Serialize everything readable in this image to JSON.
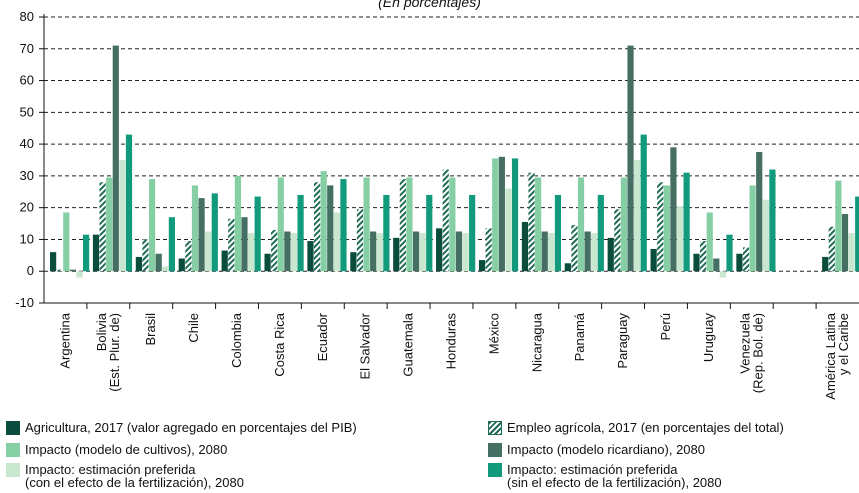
{
  "chart_data": {
    "type": "bar",
    "subtitle": "(En porcentajes)",
    "ylim": [
      -10,
      80
    ],
    "yticks": [
      -10,
      0,
      10,
      20,
      30,
      40,
      50,
      60,
      70,
      80
    ],
    "grid": "horizontal dashed",
    "categories": [
      "Argentina",
      "Bolivia\n(Est. Plur. de)",
      "Brasil",
      "Chile",
      "Colombia",
      "Costa Rica",
      "Ecuador",
      "El Salvador",
      "Guatemala",
      "Honduras",
      "México",
      "Nicaragua",
      "Panamá",
      "Paraguay",
      "Perú",
      "Uruguay",
      "Venezuela\n(Rep. Bol. de)",
      "",
      "América Latina\ny el Caribe"
    ],
    "series": [
      {
        "name": "Agricultura, 2017 (valor agregado en porcentajes del PIB)",
        "color": "#0b4d3c",
        "pattern": "solid",
        "values": [
          6,
          11.5,
          4.5,
          4,
          6.5,
          5.5,
          9.5,
          6,
          10.5,
          13.5,
          3.5,
          15.5,
          2.5,
          10.5,
          7,
          5.5,
          5.5,
          null,
          4.5
        ]
      },
      {
        "name": "Empleo agrícola, 2017 (en porcentajes del total)",
        "color": "#1f6b55",
        "pattern": "hatch",
        "values": [
          0.5,
          28,
          10,
          9.5,
          16.5,
          13,
          28,
          19.5,
          29,
          32,
          13.5,
          31,
          14.5,
          19.5,
          28,
          9.5,
          7.5,
          null,
          14
        ]
      },
      {
        "name": "Impacto (modelo de cultivos), 2080",
        "color": "#86cfa4",
        "pattern": "solid",
        "values": [
          18.5,
          29.5,
          29,
          27,
          30,
          29.5,
          31.5,
          29.5,
          29.5,
          29.5,
          35.5,
          29.5,
          29.5,
          29.5,
          27,
          18.5,
          27,
          null,
          28.5
        ]
      },
      {
        "name": "Impacto (modelo ricardiano), 2080",
        "color": "#456f63",
        "pattern": "solid",
        "values": [
          0.5,
          71,
          5.5,
          23,
          17,
          12.5,
          27,
          12.5,
          12.5,
          12.5,
          36,
          12.5,
          12.5,
          71,
          39,
          4,
          37.5,
          null,
          18
        ]
      },
      {
        "name": "Impacto: estimación preferida\n(con el efecto de la fertilización), 2080",
        "color": "#c9e6cf",
        "pattern": "solid",
        "values": [
          -2,
          35,
          1.5,
          12.5,
          12,
          12,
          18.5,
          12,
          12,
          12,
          26,
          12,
          12,
          35,
          20.5,
          -2,
          22.5,
          null,
          12
        ]
      },
      {
        "name": "Impacto: estimación preferida\n(sin el efecto de la fertilización), 2080",
        "color": "#129a7c",
        "pattern": "solid",
        "values": [
          11.5,
          43,
          17,
          24.5,
          23.5,
          24,
          29,
          24,
          24,
          24,
          35.5,
          24,
          24,
          43,
          31,
          11.5,
          32,
          null,
          23.5
        ]
      }
    ]
  },
  "legend_order": [
    0,
    1,
    2,
    3,
    4,
    5
  ]
}
